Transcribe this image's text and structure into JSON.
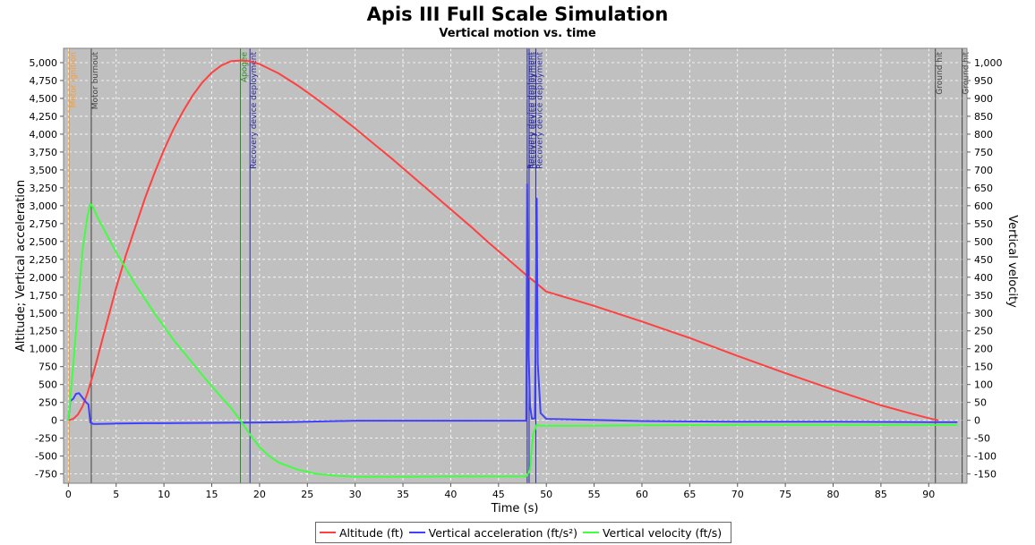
{
  "chart_data": {
    "type": "line",
    "title": "Apis III Full Scale Simulation",
    "subtitle": "Vertical motion vs. time",
    "xlabel": "Time (s)",
    "ylabel_left": "Altitude; Vertical acceleration",
    "ylabel_right": "Vertical velocity",
    "xlim": [
      -0.5,
      94
    ],
    "ylim_left": [
      -880,
      5200
    ],
    "ylim_right": [
      -176,
      1040
    ],
    "x_ticks": [
      "0",
      "5",
      "10",
      "15",
      "20",
      "25",
      "30",
      "35",
      "40",
      "45",
      "50",
      "55",
      "60",
      "65",
      "70",
      "75",
      "80",
      "85",
      "90"
    ],
    "y_left_ticks": [
      "-750",
      "-500",
      "-250",
      "0",
      "250",
      "500",
      "750",
      "1,000",
      "1,250",
      "1,500",
      "1,750",
      "2,000",
      "2,250",
      "2,500",
      "2,750",
      "3,000",
      "3,250",
      "3,500",
      "3,750",
      "4,000",
      "4,250",
      "4,500",
      "4,750",
      "5,000"
    ],
    "y_right_ticks": [
      "-150",
      "-100",
      "-50",
      "0",
      "50",
      "100",
      "150",
      "200",
      "250",
      "300",
      "350",
      "400",
      "450",
      "500",
      "550",
      "600",
      "650",
      "700",
      "750",
      "800",
      "850",
      "900",
      "950",
      "1,000"
    ],
    "grid": true,
    "background": "#c0c0c0",
    "legend_position": "bottom",
    "series": [
      {
        "name": "Altitude (ft)",
        "color": "#ff4040",
        "axis": "left",
        "points": [
          [
            0,
            0
          ],
          [
            0.5,
            20
          ],
          [
            1,
            80
          ],
          [
            1.5,
            200
          ],
          [
            2,
            380
          ],
          [
            2.5,
            600
          ],
          [
            3,
            850
          ],
          [
            4,
            1350
          ],
          [
            5,
            1850
          ],
          [
            6,
            2300
          ],
          [
            7,
            2700
          ],
          [
            8,
            3100
          ],
          [
            9,
            3450
          ],
          [
            10,
            3780
          ],
          [
            11,
            4070
          ],
          [
            12,
            4320
          ],
          [
            13,
            4540
          ],
          [
            14,
            4720
          ],
          [
            15,
            4860
          ],
          [
            16,
            4960
          ],
          [
            17,
            5020
          ],
          [
            18,
            5030
          ],
          [
            19,
            5020
          ],
          [
            20,
            4980
          ],
          [
            22,
            4850
          ],
          [
            24,
            4680
          ],
          [
            26,
            4490
          ],
          [
            28,
            4290
          ],
          [
            30,
            4080
          ],
          [
            32,
            3860
          ],
          [
            34,
            3640
          ],
          [
            36,
            3410
          ],
          [
            38,
            3180
          ],
          [
            40,
            2950
          ],
          [
            42,
            2720
          ],
          [
            44,
            2480
          ],
          [
            46,
            2250
          ],
          [
            48,
            2020
          ],
          [
            48.2,
            2000
          ],
          [
            50,
            1800
          ],
          [
            55,
            1600
          ],
          [
            60,
            1380
          ],
          [
            65,
            1150
          ],
          [
            70,
            900
          ],
          [
            75,
            660
          ],
          [
            80,
            430
          ],
          [
            85,
            210
          ],
          [
            88,
            100
          ],
          [
            90,
            30
          ],
          [
            91,
            0
          ]
        ]
      },
      {
        "name": "Vertical acceleration (ft/s²)",
        "color": "#4040ff",
        "axis": "left",
        "points": [
          [
            0,
            0
          ],
          [
            0.2,
            270
          ],
          [
            0.5,
            300
          ],
          [
            0.8,
            370
          ],
          [
            1.1,
            380
          ],
          [
            1.4,
            330
          ],
          [
            1.8,
            260
          ],
          [
            2.1,
            220
          ],
          [
            2.3,
            -30
          ],
          [
            2.6,
            -50
          ],
          [
            3,
            -50
          ],
          [
            5,
            -45
          ],
          [
            8,
            -40
          ],
          [
            10,
            -40
          ],
          [
            15,
            -35
          ],
          [
            20,
            -30
          ],
          [
            23,
            -25
          ],
          [
            25,
            -20
          ],
          [
            30,
            -5
          ],
          [
            35,
            -5
          ],
          [
            40,
            -5
          ],
          [
            45,
            -5
          ],
          [
            47.9,
            -5
          ],
          [
            48.0,
            3300
          ],
          [
            48.1,
            1200
          ],
          [
            48.3,
            200
          ],
          [
            48.5,
            20
          ],
          [
            48.8,
            30
          ],
          [
            49.0,
            3100
          ],
          [
            49.1,
            800
          ],
          [
            49.4,
            100
          ],
          [
            50,
            20
          ],
          [
            60,
            -10
          ],
          [
            70,
            -20
          ],
          [
            80,
            -20
          ],
          [
            90,
            -25
          ],
          [
            93,
            -25
          ]
        ]
      },
      {
        "name": "Vertical velocity (ft/s)",
        "color": "#40ff40",
        "axis": "right",
        "points": [
          [
            0,
            0
          ],
          [
            0.5,
            150
          ],
          [
            1,
            320
          ],
          [
            1.5,
            480
          ],
          [
            2,
            570
          ],
          [
            2.3,
            605
          ],
          [
            2.6,
            595
          ],
          [
            3,
            570
          ],
          [
            5,
            470
          ],
          [
            7,
            380
          ],
          [
            9,
            300
          ],
          [
            11,
            225
          ],
          [
            13,
            160
          ],
          [
            15,
            95
          ],
          [
            17,
            35
          ],
          [
            18,
            0
          ],
          [
            19,
            -40
          ],
          [
            20,
            -75
          ],
          [
            21,
            -100
          ],
          [
            22,
            -118
          ],
          [
            24,
            -138
          ],
          [
            26,
            -150
          ],
          [
            28,
            -155
          ],
          [
            30,
            -158
          ],
          [
            35,
            -158
          ],
          [
            40,
            -157
          ],
          [
            45,
            -157
          ],
          [
            47.9,
            -157
          ],
          [
            48.3,
            -140
          ],
          [
            48.6,
            -40
          ],
          [
            49.0,
            -12
          ],
          [
            49.2,
            -15
          ],
          [
            55,
            -15
          ],
          [
            60,
            -14
          ],
          [
            70,
            -13
          ],
          [
            80,
            -13
          ],
          [
            90,
            -13
          ],
          [
            93,
            -13
          ]
        ]
      }
    ],
    "event_markers": [
      {
        "label": "Motor ignition",
        "t": 0.1,
        "color": "#ff9a2e"
      },
      {
        "label": "Motor burnout",
        "t": 2.4,
        "color": "#404040"
      },
      {
        "label": "Apogee",
        "t": 18.0,
        "color": "#2a8a2a"
      },
      {
        "label": "Recovery device deployment",
        "t": 19.0,
        "color": "#2a2aa0"
      },
      {
        "label": "Recovery device deployment",
        "t": 48.0,
        "color": "#2a2aa0"
      },
      {
        "label": "Recovery device deployment",
        "t": 48.2,
        "color": "#2a2aa0"
      },
      {
        "label": "Recovery device deployment",
        "t": 48.9,
        "color": "#2a2aa0"
      },
      {
        "label": "Ground hit",
        "t": 90.7,
        "color": "#404040"
      },
      {
        "label": "Ground hit",
        "t": 93.5,
        "color": "#404040"
      }
    ]
  },
  "legend": {
    "items": [
      {
        "label": "Altitude (ft)",
        "color": "#ff4040"
      },
      {
        "label": "Vertical acceleration (ft/s²)",
        "color": "#4040ff"
      },
      {
        "label": "Vertical velocity (ft/s)",
        "color": "#40ff40"
      }
    ]
  }
}
